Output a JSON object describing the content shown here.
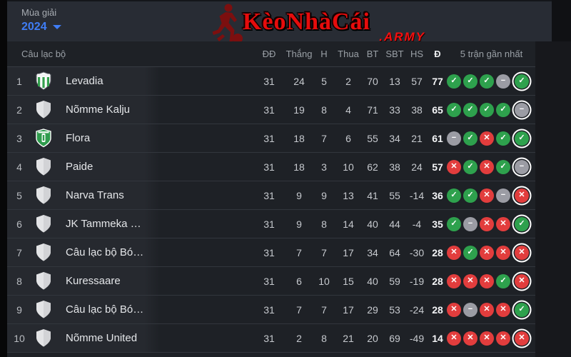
{
  "topbar": {
    "season_label": "Mùa giải",
    "season_value": "2024",
    "logo_main": "KèoNhàCái",
    "logo_suffix": ".ARMY"
  },
  "table": {
    "headers": {
      "club": "Câu lạc bộ",
      "played": "ĐĐ",
      "wins": "Thắng",
      "draws": "H",
      "losses": "Thua",
      "goals_for": "BT",
      "goals_against": "SBT",
      "goal_diff": "HS",
      "points": "Đ",
      "form": "5 trận gần nhất"
    },
    "rows": [
      {
        "rank": "1",
        "name": "Levadia",
        "crest": "levadia",
        "played": "31",
        "wins": "24",
        "draws": "5",
        "losses": "2",
        "goals_for": "70",
        "goals_against": "13",
        "goal_diff": "57",
        "points": "77",
        "form": [
          "W",
          "W",
          "W",
          "D",
          "W"
        ]
      },
      {
        "rank": "2",
        "name": "Nõmme Kalju",
        "crest": "generic",
        "played": "31",
        "wins": "19",
        "draws": "8",
        "losses": "4",
        "goals_for": "71",
        "goals_against": "33",
        "goal_diff": "38",
        "points": "65",
        "form": [
          "W",
          "W",
          "W",
          "W",
          "D"
        ]
      },
      {
        "rank": "3",
        "name": "Flora",
        "crest": "flora",
        "played": "31",
        "wins": "18",
        "draws": "7",
        "losses": "6",
        "goals_for": "55",
        "goals_against": "34",
        "goal_diff": "21",
        "points": "61",
        "form": [
          "D",
          "W",
          "L",
          "W",
          "W"
        ]
      },
      {
        "rank": "4",
        "name": "Paide",
        "crest": "generic",
        "played": "31",
        "wins": "18",
        "draws": "3",
        "losses": "10",
        "goals_for": "62",
        "goals_against": "38",
        "goal_diff": "24",
        "points": "57",
        "form": [
          "L",
          "W",
          "L",
          "W",
          "D"
        ]
      },
      {
        "rank": "5",
        "name": "Narva Trans",
        "crest": "generic",
        "played": "31",
        "wins": "9",
        "draws": "9",
        "losses": "13",
        "goals_for": "41",
        "goals_against": "55",
        "goal_diff": "-14",
        "points": "36",
        "form": [
          "W",
          "W",
          "L",
          "D",
          "L"
        ]
      },
      {
        "rank": "6",
        "name": "JK Tammeka …",
        "crest": "generic",
        "played": "31",
        "wins": "9",
        "draws": "8",
        "losses": "14",
        "goals_for": "40",
        "goals_against": "44",
        "goal_diff": "-4",
        "points": "35",
        "form": [
          "W",
          "D",
          "L",
          "L",
          "W"
        ]
      },
      {
        "rank": "7",
        "name": "Câu lạc bộ Bó…",
        "crest": "generic",
        "played": "31",
        "wins": "7",
        "draws": "7",
        "losses": "17",
        "goals_for": "34",
        "goals_against": "64",
        "goal_diff": "-30",
        "points": "28",
        "form": [
          "L",
          "W",
          "L",
          "L",
          "L"
        ]
      },
      {
        "rank": "8",
        "name": "Kuressaare",
        "crest": "generic",
        "played": "31",
        "wins": "6",
        "draws": "10",
        "losses": "15",
        "goals_for": "40",
        "goals_against": "59",
        "goal_diff": "-19",
        "points": "28",
        "form": [
          "L",
          "L",
          "L",
          "W",
          "L"
        ]
      },
      {
        "rank": "9",
        "name": "Câu lạc bộ Bó…",
        "crest": "generic",
        "played": "31",
        "wins": "7",
        "draws": "7",
        "losses": "17",
        "goals_for": "29",
        "goals_against": "53",
        "goal_diff": "-24",
        "points": "28",
        "form": [
          "L",
          "D",
          "L",
          "L",
          "W"
        ]
      },
      {
        "rank": "10",
        "name": "Nõmme United",
        "crest": "generic",
        "played": "31",
        "wins": "2",
        "draws": "8",
        "losses": "21",
        "goals_for": "20",
        "goals_against": "69",
        "goal_diff": "-49",
        "points": "14",
        "form": [
          "L",
          "L",
          "L",
          "L",
          "L"
        ]
      }
    ]
  },
  "icons": {
    "result_glyphs": {
      "W": "✓",
      "D": "−",
      "L": "✕"
    }
  },
  "colors": {
    "accent_blue": "#3f7df5",
    "win_green": "#2ea14d",
    "draw_gray": "#9b9ca4",
    "loss_red": "#e23d3d",
    "logo_red": "#e60c0c",
    "topbar_bg": "#282c34",
    "table_bg": "#1e2126"
  }
}
